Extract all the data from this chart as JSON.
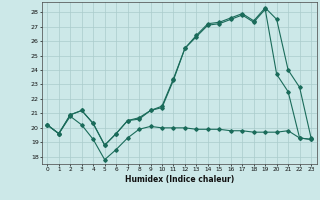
{
  "xlabel": "Humidex (Indice chaleur)",
  "bg_color": "#cce8e8",
  "grid_color": "#aacccc",
  "line_color": "#1a6b5a",
  "xlim": [
    -0.5,
    23.5
  ],
  "ylim": [
    17.5,
    28.7
  ],
  "yticks": [
    18,
    19,
    20,
    21,
    22,
    23,
    24,
    25,
    26,
    27,
    28
  ],
  "xticks": [
    0,
    1,
    2,
    3,
    4,
    5,
    6,
    7,
    8,
    9,
    10,
    11,
    12,
    13,
    14,
    15,
    16,
    17,
    18,
    19,
    20,
    21,
    22,
    23
  ],
  "line1_x": [
    0,
    1,
    2,
    3,
    4,
    5,
    6,
    7,
    8,
    9,
    10,
    11,
    12,
    13,
    14,
    15,
    16,
    17,
    18,
    19,
    20,
    21,
    22,
    23
  ],
  "line1_y": [
    20.2,
    19.6,
    20.8,
    20.2,
    19.2,
    17.8,
    18.5,
    19.3,
    19.9,
    20.1,
    20.0,
    20.0,
    20.0,
    19.9,
    19.9,
    19.9,
    19.8,
    19.8,
    19.7,
    19.7,
    19.7,
    19.8,
    19.3,
    19.2
  ],
  "line2_x": [
    0,
    1,
    2,
    3,
    4,
    5,
    6,
    7,
    8,
    9,
    10,
    11,
    12,
    13,
    14,
    15,
    16,
    17,
    18,
    19,
    20,
    21,
    22,
    23
  ],
  "line2_y": [
    20.2,
    19.6,
    20.9,
    21.2,
    20.3,
    18.8,
    19.6,
    20.5,
    20.6,
    21.2,
    21.4,
    23.3,
    25.5,
    26.3,
    27.1,
    27.2,
    27.5,
    27.8,
    27.3,
    28.2,
    23.7,
    22.5,
    19.3,
    19.2
  ],
  "line3_x": [
    0,
    1,
    2,
    3,
    4,
    5,
    6,
    7,
    8,
    9,
    10,
    11,
    12,
    13,
    14,
    15,
    16,
    17,
    18,
    19,
    20,
    21,
    22,
    23
  ],
  "line3_y": [
    20.2,
    19.6,
    20.9,
    21.2,
    20.3,
    18.8,
    19.6,
    20.5,
    20.7,
    21.2,
    21.5,
    23.4,
    25.5,
    26.4,
    27.2,
    27.3,
    27.6,
    27.9,
    27.4,
    28.3,
    27.5,
    24.0,
    22.8,
    19.3
  ]
}
